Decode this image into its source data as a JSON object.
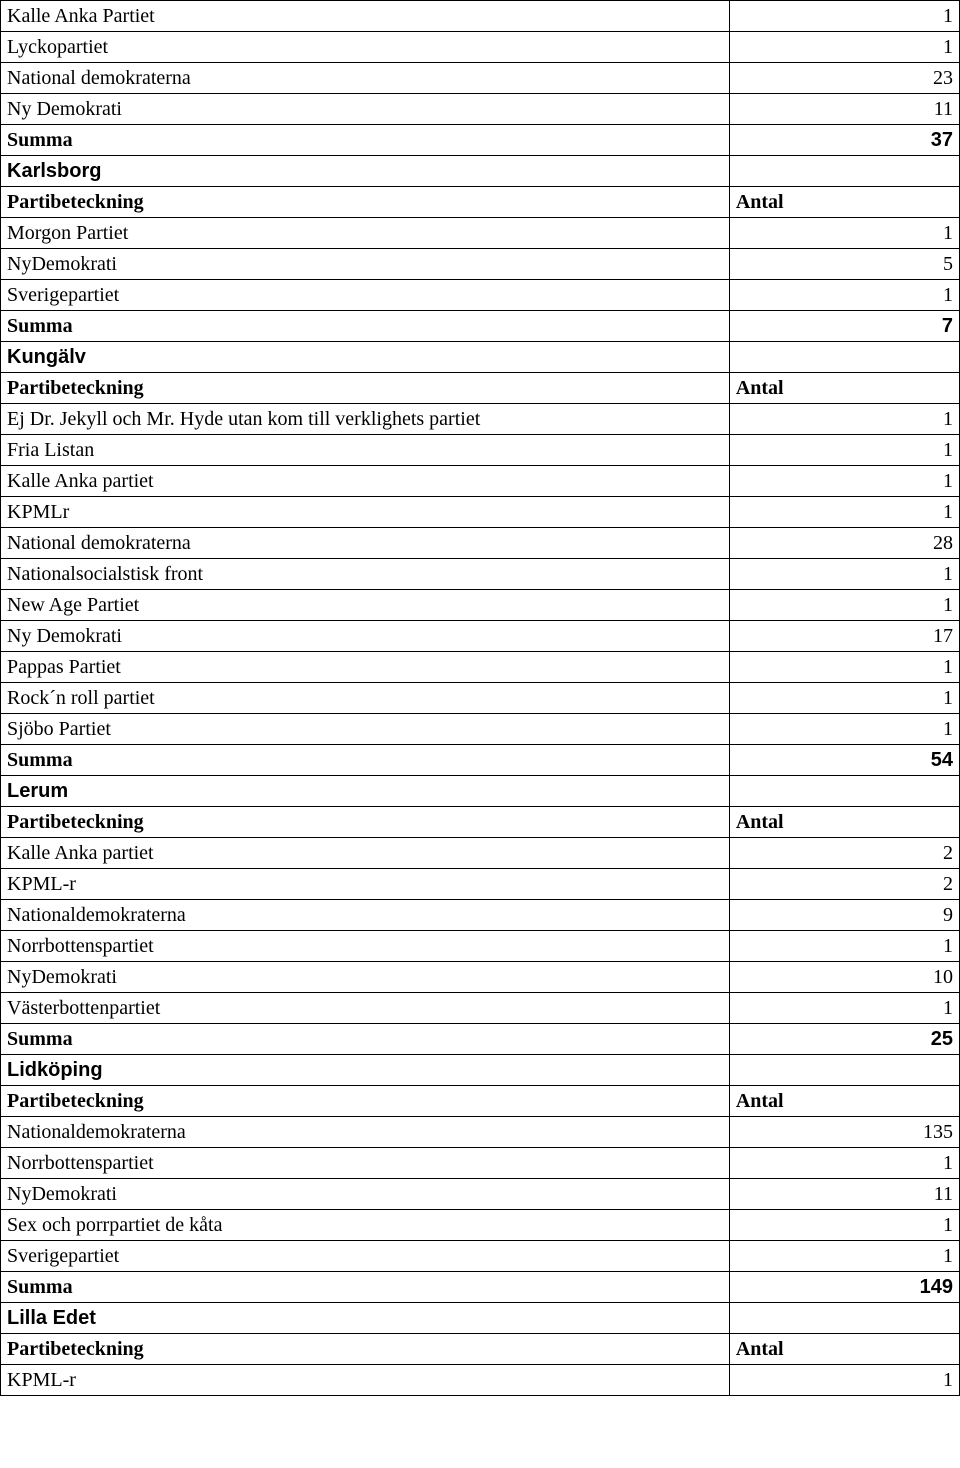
{
  "rows": [
    {
      "name": "Kalle Anka Partiet",
      "val": "1",
      "type": "data"
    },
    {
      "name": "Lyckopartiet",
      "val": "1",
      "type": "data"
    },
    {
      "name": "National demokraterna",
      "val": "23",
      "type": "data"
    },
    {
      "name": "Ny Demokrati",
      "val": "11",
      "type": "data"
    },
    {
      "name": "Summa",
      "val": "37",
      "type": "summa"
    },
    {
      "name": "Karlsborg",
      "val": "",
      "type": "section"
    },
    {
      "name": "Partibeteckning",
      "val": "Antal",
      "type": "header"
    },
    {
      "name": "Morgon Partiet",
      "val": "1",
      "type": "data"
    },
    {
      "name": "NyDemokrati",
      "val": "5",
      "type": "data"
    },
    {
      "name": "Sverigepartiet",
      "val": "1",
      "type": "data"
    },
    {
      "name": "Summa",
      "val": "7",
      "type": "summa"
    },
    {
      "name": "Kungälv",
      "val": "",
      "type": "section"
    },
    {
      "name": "Partibeteckning",
      "val": "Antal",
      "type": "header"
    },
    {
      "name": "Ej Dr. Jekyll och Mr. Hyde utan kom till verklighets partiet",
      "val": "1",
      "type": "data"
    },
    {
      "name": "Fria Listan",
      "val": "1",
      "type": "data"
    },
    {
      "name": "Kalle Anka partiet",
      "val": "1",
      "type": "data"
    },
    {
      "name": "KPMLr",
      "val": "1",
      "type": "data"
    },
    {
      "name": "National demokraterna",
      "val": "28",
      "type": "data"
    },
    {
      "name": "Nationalsocialstisk front",
      "val": "1",
      "type": "data"
    },
    {
      "name": "New Age Partiet",
      "val": "1",
      "type": "data"
    },
    {
      "name": "Ny Demokrati",
      "val": "17",
      "type": "data"
    },
    {
      "name": "Pappas Partiet",
      "val": "1",
      "type": "data"
    },
    {
      "name": "Rock´n roll partiet",
      "val": "1",
      "type": "data"
    },
    {
      "name": "Sjöbo Partiet",
      "val": "1",
      "type": "data"
    },
    {
      "name": "Summa",
      "val": "54",
      "type": "summa"
    },
    {
      "name": "Lerum",
      "val": "",
      "type": "section"
    },
    {
      "name": "Partibeteckning",
      "val": "Antal",
      "type": "header"
    },
    {
      "name": "Kalle Anka partiet",
      "val": "2",
      "type": "data"
    },
    {
      "name": "KPML-r",
      "val": "2",
      "type": "data"
    },
    {
      "name": "Nationaldemokraterna",
      "val": "9",
      "type": "data"
    },
    {
      "name": "Norrbottenspartiet",
      "val": "1",
      "type": "data"
    },
    {
      "name": "NyDemokrati",
      "val": "10",
      "type": "data"
    },
    {
      "name": "Västerbottenpartiet",
      "val": "1",
      "type": "data"
    },
    {
      "name": "Summa",
      "val": "25",
      "type": "summa"
    },
    {
      "name": "Lidköping",
      "val": "",
      "type": "section"
    },
    {
      "name": "Partibeteckning",
      "val": "Antal",
      "type": "header"
    },
    {
      "name": "Nationaldemokraterna",
      "val": "135",
      "type": "data"
    },
    {
      "name": "Norrbottenspartiet",
      "val": "1",
      "type": "data"
    },
    {
      "name": "NyDemokrati",
      "val": "11",
      "type": "data"
    },
    {
      "name": "Sex och porrpartiet de kåta",
      "val": "1",
      "type": "data"
    },
    {
      "name": "Sverigepartiet",
      "val": "1",
      "type": "data"
    },
    {
      "name": "Summa",
      "val": "149",
      "type": "summa"
    },
    {
      "name": "Lilla Edet",
      "val": "",
      "type": "section"
    },
    {
      "name": "Partibeteckning",
      "val": "Antal",
      "type": "header"
    },
    {
      "name": "KPML-r",
      "val": "1",
      "type": "data"
    }
  ]
}
